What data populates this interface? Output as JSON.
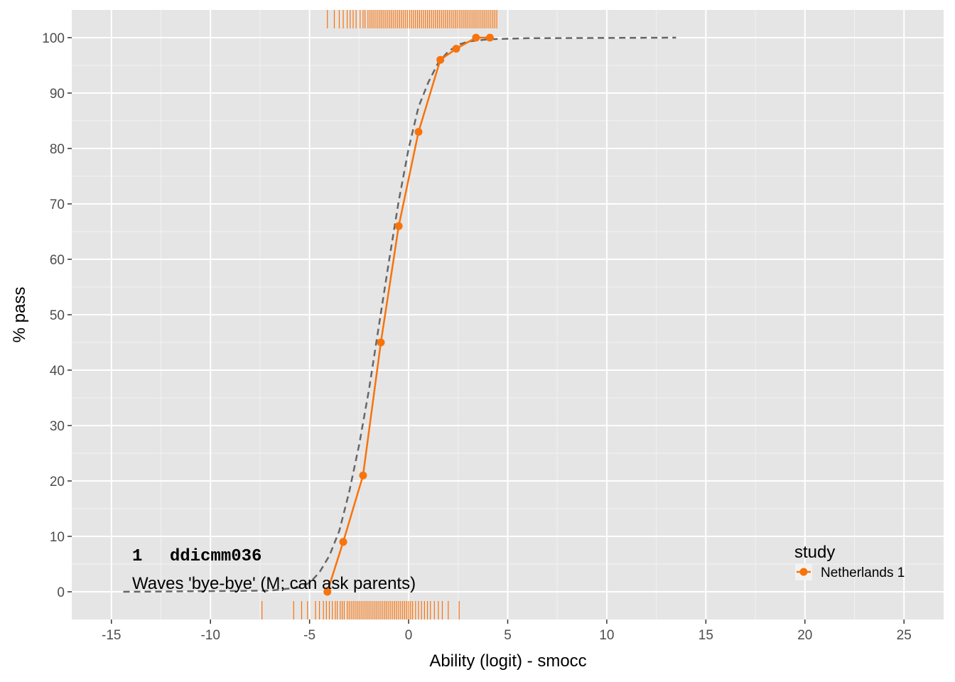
{
  "chart_data": {
    "type": "line",
    "xlabel": "Ability (logit) - smocc",
    "ylabel": "% pass",
    "xlim": [
      -17,
      27
    ],
    "ylim": [
      -5,
      105
    ],
    "x_ticks": [
      -15,
      -10,
      -5,
      0,
      5,
      10,
      15,
      20,
      25
    ],
    "x_tick_labels": [
      "-15",
      "-10",
      "-5",
      "0",
      "5",
      "10",
      "15",
      "20",
      "25"
    ],
    "y_ticks": [
      0,
      10,
      20,
      30,
      40,
      50,
      60,
      70,
      80,
      90,
      100
    ],
    "y_tick_labels": [
      "0",
      "10",
      "20",
      "30",
      "40",
      "50",
      "60",
      "70",
      "80",
      "90",
      "100"
    ],
    "grid": true,
    "legend": {
      "title": "study",
      "position": "right",
      "entries": [
        "Netherlands 1"
      ]
    },
    "annotation": {
      "number": "1",
      "code": "ddicmm036",
      "label": "Waves 'bye-bye' (M; can ask parents)"
    },
    "series": [
      {
        "name": "Netherlands 1",
        "color": "#f8730b",
        "style": "solid-with-points",
        "x": [
          -4.1,
          -3.3,
          -2.3,
          -1.4,
          -0.5,
          0.5,
          1.6,
          2.4,
          3.4,
          4.1
        ],
        "y": [
          0,
          9,
          21,
          45,
          66,
          83,
          96,
          98,
          100,
          100
        ]
      }
    ],
    "reference_curve": {
      "style": "dashed",
      "color": "#666666",
      "x": [
        -14.4,
        -7,
        -5.5,
        -5,
        -4.5,
        -4,
        -3.5,
        -3,
        -2.5,
        -2,
        -1.5,
        -1,
        -0.5,
        0,
        0.5,
        1,
        1.5,
        2,
        2.5,
        3,
        4,
        6,
        13.5
      ],
      "y": [
        0,
        0.2,
        0.8,
        1.6,
        3.5,
        6.5,
        11,
        18,
        26.5,
        36.5,
        48,
        59.5,
        70.5,
        80,
        87.5,
        92,
        95.5,
        97.5,
        98.7,
        99.3,
        99.7,
        99.9,
        100
      ]
    },
    "rug_pass": [
      -4.1,
      -3.75,
      -3.5,
      -3.3,
      -3.1,
      -2.95,
      -2.8,
      -2.65,
      -2.45,
      -2.3,
      -2.2,
      -2.05,
      -1.95,
      -1.85,
      -1.75,
      -1.65,
      -1.55,
      -1.45,
      -1.35,
      -1.25,
      -1.15,
      -1.05,
      -0.95,
      -0.85,
      -0.75,
      -0.65,
      -0.55,
      -0.45,
      -0.35,
      -0.25,
      -0.15,
      -0.05,
      0.05,
      0.15,
      0.25,
      0.35,
      0.45,
      0.55,
      0.65,
      0.75,
      0.85,
      0.95,
      1.05,
      1.15,
      1.25,
      1.35,
      1.45,
      1.55,
      1.65,
      1.75,
      1.85,
      1.95,
      2.05,
      2.15,
      2.25,
      2.35,
      2.45,
      2.55,
      2.65,
      2.75,
      2.85,
      2.95,
      3.05,
      3.15,
      3.25,
      3.35,
      3.45,
      3.55,
      3.65,
      3.75,
      3.85,
      3.95,
      4.05,
      4.15,
      4.25,
      4.35,
      4.45
    ],
    "rug_fail": [
      -7.4,
      -5.8,
      -5.4,
      -5.1,
      -4.7,
      -4.5,
      -4.3,
      -4.15,
      -4.0,
      -3.85,
      -3.7,
      -3.6,
      -3.45,
      -3.35,
      -3.25,
      -3.1,
      -3.0,
      -2.9,
      -2.8,
      -2.7,
      -2.6,
      -2.5,
      -2.4,
      -2.3,
      -2.2,
      -2.1,
      -2.0,
      -1.9,
      -1.8,
      -1.7,
      -1.6,
      -1.5,
      -1.4,
      -1.3,
      -1.2,
      -1.1,
      -1.0,
      -0.9,
      -0.8,
      -0.7,
      -0.6,
      -0.5,
      -0.4,
      -0.3,
      -0.2,
      -0.1,
      0.0,
      0.1,
      0.2,
      0.35,
      0.5,
      0.65,
      0.8,
      0.95,
      1.1,
      1.3,
      1.5,
      1.7,
      2.0,
      2.55
    ]
  }
}
